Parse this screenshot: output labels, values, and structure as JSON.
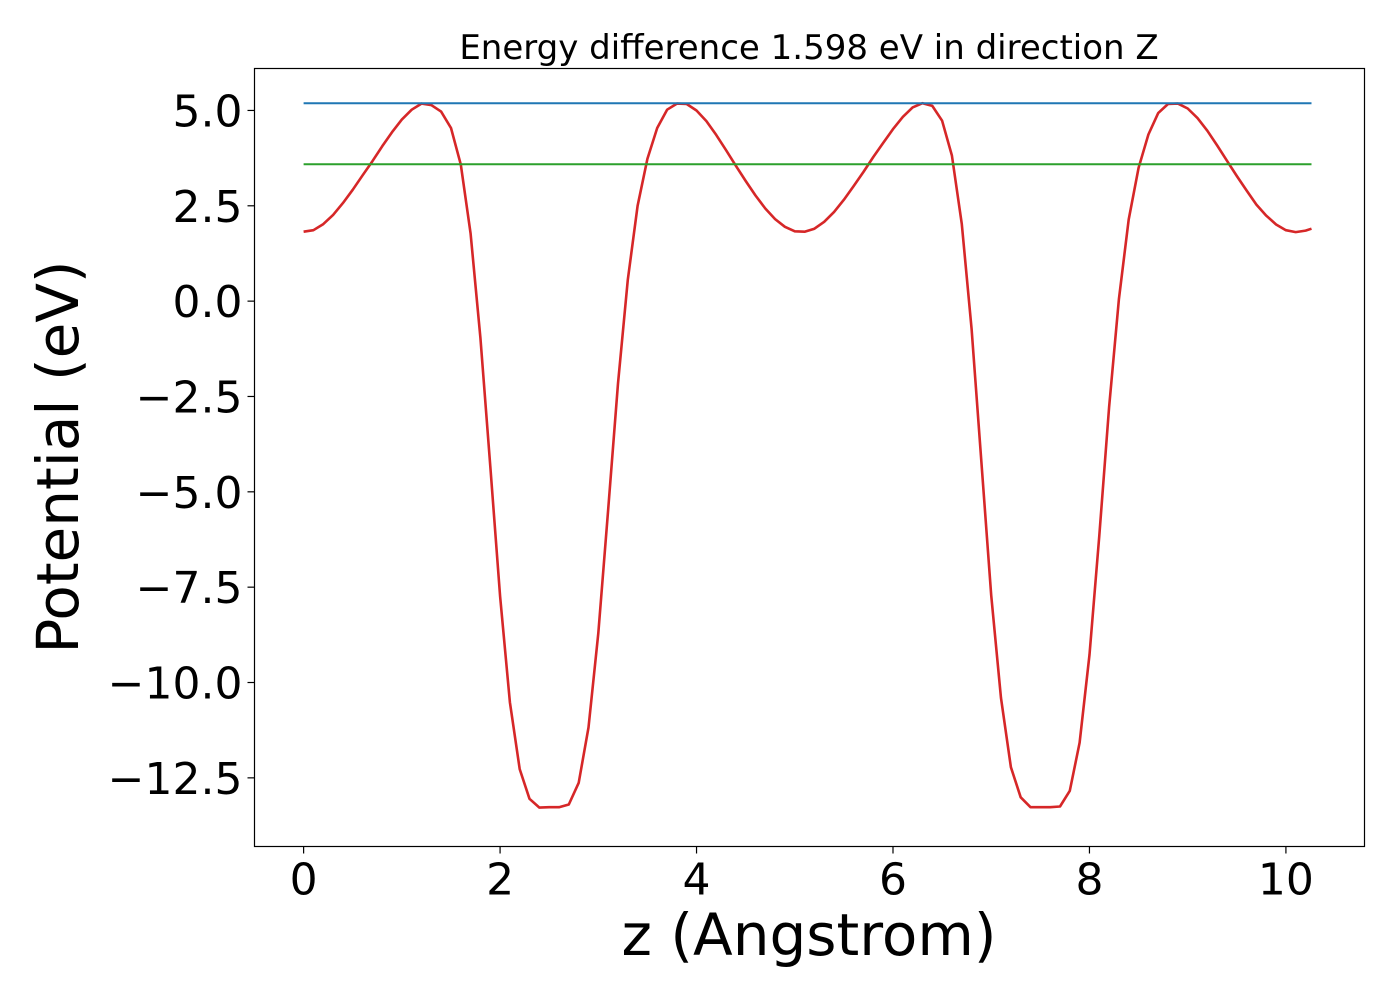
{
  "chart_data": {
    "type": "line",
    "title": "Energy difference 1.598 eV in direction Z",
    "xlabel": "z (Angstrom)",
    "ylabel": "Potential (eV)",
    "xlim": [
      -0.5,
      10.8
    ],
    "ylim": [
      -14.3,
      6.1
    ],
    "xticks": [
      0,
      2,
      4,
      6,
      8,
      10
    ],
    "xtick_labels": [
      "0",
      "2",
      "4",
      "6",
      "8",
      "10"
    ],
    "yticks": [
      5.0,
      2.5,
      0.0,
      -2.5,
      -5.0,
      -7.5,
      -10.0,
      -12.5
    ],
    "ytick_labels": [
      "5.0",
      "2.5",
      "0.0",
      "−2.5",
      "−5.0",
      "−7.5",
      "−10.0",
      "−12.5"
    ],
    "grid": false,
    "series": [
      {
        "color": "#d62728",
        "x": [
          0.0,
          0.1,
          0.2,
          0.3,
          0.4,
          0.5,
          0.6,
          0.7,
          0.8,
          0.9,
          1.0,
          1.1,
          1.2,
          1.3,
          1.4,
          1.5,
          1.6,
          1.7,
          1.8,
          1.9,
          2.0,
          2.1,
          2.2,
          2.3,
          2.4,
          2.5,
          2.6,
          2.7,
          2.8,
          2.9,
          3.0,
          3.1,
          3.2,
          3.3,
          3.4,
          3.5,
          3.6,
          3.7,
          3.8,
          3.9,
          4.0,
          4.1,
          4.2,
          4.3,
          4.4,
          4.5,
          4.6,
          4.7,
          4.8,
          4.9,
          5.0,
          5.1,
          5.2,
          5.3,
          5.4,
          5.5,
          5.6,
          5.7,
          5.8,
          5.9,
          6.0,
          6.1,
          6.2,
          6.3,
          6.4,
          6.5,
          6.6,
          6.7,
          6.8,
          6.9,
          7.0,
          7.1,
          7.2,
          7.3,
          7.4,
          7.5,
          7.6,
          7.7,
          7.8,
          7.9,
          8.0,
          8.1,
          8.2,
          8.3,
          8.4,
          8.5,
          8.6,
          8.7,
          8.8,
          8.9,
          9.0,
          9.1,
          9.2,
          9.3,
          9.4,
          9.5,
          9.6,
          9.7,
          9.8,
          9.9,
          10.0,
          10.1,
          10.2,
          10.26
        ],
        "y": [
          1.82,
          1.86,
          2.02,
          2.26,
          2.57,
          2.92,
          3.3,
          3.67,
          4.06,
          4.43,
          4.76,
          5.02,
          5.18,
          5.14,
          4.97,
          4.54,
          3.58,
          1.77,
          -0.96,
          -4.33,
          -7.74,
          -10.52,
          -12.27,
          -13.05,
          -13.28,
          -13.27,
          -13.27,
          -13.2,
          -12.63,
          -11.18,
          -8.71,
          -5.49,
          -2.16,
          0.56,
          2.5,
          3.73,
          4.54,
          5.02,
          5.18,
          5.17,
          5.0,
          4.72,
          4.36,
          3.96,
          3.55,
          3.15,
          2.77,
          2.43,
          2.15,
          1.95,
          1.83,
          1.82,
          1.9,
          2.08,
          2.34,
          2.66,
          3.02,
          3.39,
          3.78,
          4.15,
          4.51,
          4.83,
          5.08,
          5.19,
          5.12,
          4.73,
          3.82,
          2.02,
          -0.73,
          -4.22,
          -7.71,
          -10.41,
          -12.22,
          -13.01,
          -13.27,
          -13.27,
          -13.27,
          -13.25,
          -12.84,
          -11.58,
          -9.27,
          -6.15,
          -2.78,
          0.05,
          2.14,
          3.5,
          4.37,
          4.93,
          5.17,
          5.18,
          5.05,
          4.8,
          4.47,
          4.08,
          3.68,
          3.28,
          2.9,
          2.53,
          2.24,
          2.01,
          1.86,
          1.81,
          1.85,
          1.9
        ]
      },
      {
        "color": "#1f77b4",
        "x": [
          0.0,
          10.26
        ],
        "y": [
          5.19,
          5.19
        ]
      },
      {
        "color": "#2ca02c",
        "x": [
          0.0,
          10.26
        ],
        "y": [
          3.59,
          3.59
        ]
      }
    ]
  }
}
